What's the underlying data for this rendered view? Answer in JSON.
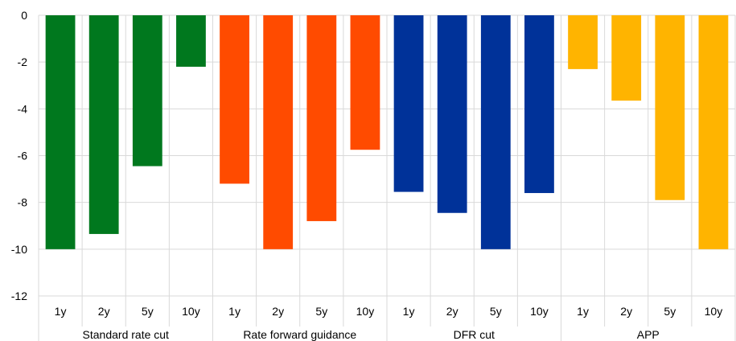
{
  "chart_data": {
    "type": "bar",
    "title": "",
    "xlabel": "",
    "ylabel": "",
    "ylim": [
      -12,
      0
    ],
    "yticks": [
      0,
      -2,
      -4,
      -6,
      -8,
      -10,
      -12
    ],
    "grid": true,
    "legend": "none",
    "groups": [
      {
        "label": "Standard rate cut",
        "color": "#00781E",
        "categories": [
          "1y",
          "2y",
          "5y",
          "10y"
        ],
        "values": [
          -10,
          -9.35,
          -6.45,
          -2.2
        ]
      },
      {
        "label": "Rate forward guidance",
        "color": "#FF4B00",
        "categories": [
          "1y",
          "2y",
          "5y",
          "10y"
        ],
        "values": [
          -7.2,
          -10,
          -8.8,
          -5.75
        ]
      },
      {
        "label": "DFR cut",
        "color": "#003299",
        "categories": [
          "1y",
          "2y",
          "5y",
          "10y"
        ],
        "values": [
          -7.55,
          -8.45,
          -10,
          -7.6
        ]
      },
      {
        "label": "APP",
        "color": "#FFB400",
        "categories": [
          "1y",
          "2y",
          "5y",
          "10y"
        ],
        "values": [
          -2.3,
          -3.65,
          -7.9,
          -10
        ]
      }
    ]
  }
}
